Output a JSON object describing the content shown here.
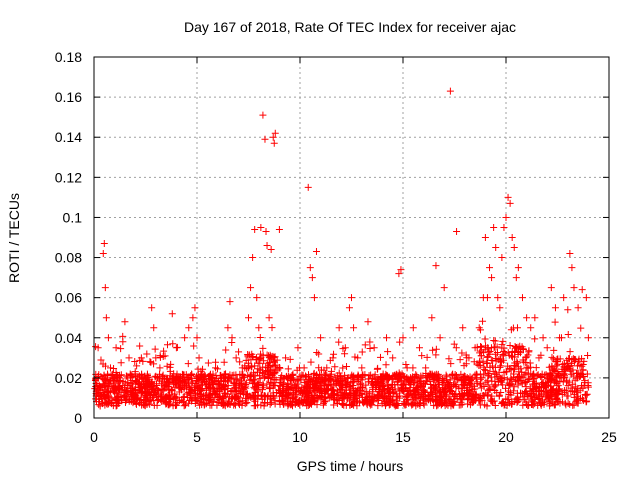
{
  "chart_data": {
    "type": "scatter",
    "title": "Day 167 of 2018, Rate Of TEC Index for receiver ajac",
    "xlabel": "GPS time / hours",
    "ylabel": "ROTI / TECUs",
    "xlim": [
      0,
      25
    ],
    "ylim": [
      0,
      0.18
    ],
    "xticks": [
      0,
      5,
      10,
      15,
      20,
      25
    ],
    "xtick_labels": [
      "0",
      "5",
      "10",
      "15",
      "20",
      "25"
    ],
    "yticks": [
      0,
      0.02,
      0.04,
      0.06,
      0.08,
      0.1,
      0.12,
      0.14,
      0.16,
      0.18
    ],
    "ytick_labels": [
      "0",
      "0.02",
      "0.04",
      "0.06",
      "0.08",
      "0.1",
      "0.12",
      "0.14",
      "0.16",
      "0.18"
    ],
    "grid": true,
    "marker": "+",
    "color": "#ff0000",
    "series": [
      {
        "name": "ROTI",
        "x": [
          0.1,
          0.2,
          0.3,
          0.45,
          0.5,
          0.55,
          0.6,
          0.7,
          0.8,
          1.0,
          1.2,
          1.4,
          1.5,
          1.7,
          2.0,
          2.1,
          2.3,
          2.5,
          2.8,
          2.9,
          3.0,
          3.2,
          3.5,
          3.8,
          4.0,
          4.2,
          4.4,
          4.6,
          4.8,
          4.9,
          5.0,
          5.1,
          5.3,
          5.6,
          5.9,
          6.2,
          6.5,
          6.6,
          6.7,
          6.9,
          7.2,
          7.5,
          7.6,
          7.7,
          7.8,
          7.9,
          8.0,
          8.1,
          8.2,
          8.3,
          8.35,
          8.4,
          8.5,
          8.6,
          8.7,
          8.75,
          8.8,
          9.0,
          9.3,
          9.6,
          9.9,
          10.2,
          10.4,
          10.5,
          10.6,
          10.7,
          10.8,
          11.0,
          11.3,
          11.6,
          11.9,
          12.2,
          12.4,
          12.5,
          12.6,
          12.8,
          13.0,
          13.3,
          13.6,
          13.9,
          14.2,
          14.5,
          14.8,
          14.9,
          15.0,
          15.2,
          15.5,
          15.8,
          16.1,
          16.4,
          16.6,
          16.8,
          17.0,
          17.3,
          17.6,
          17.9,
          18.2,
          18.5,
          18.7,
          18.9,
          19.0,
          19.1,
          19.2,
          19.3,
          19.4,
          19.5,
          19.6,
          19.7,
          19.8,
          19.9,
          20.0,
          20.1,
          20.2,
          20.3,
          20.4,
          20.5,
          20.6,
          20.8,
          21.0,
          21.2,
          21.4,
          21.6,
          21.8,
          22.0,
          22.2,
          22.4,
          22.6,
          22.8,
          23.0,
          23.1,
          23.2,
          23.3,
          23.5,
          23.7,
          23.9,
          24.0
        ],
        "y": [
          0.02,
          0.035,
          0.015,
          0.082,
          0.087,
          0.065,
          0.05,
          0.04,
          0.025,
          0.02,
          0.018,
          0.038,
          0.048,
          0.03,
          0.022,
          0.018,
          0.03,
          0.015,
          0.055,
          0.045,
          0.03,
          0.025,
          0.015,
          0.052,
          0.035,
          0.02,
          0.04,
          0.045,
          0.05,
          0.055,
          0.04,
          0.03,
          0.02,
          0.015,
          0.025,
          0.02,
          0.045,
          0.058,
          0.04,
          0.03,
          0.025,
          0.05,
          0.065,
          0.08,
          0.094,
          0.06,
          0.045,
          0.095,
          0.151,
          0.139,
          0.093,
          0.086,
          0.05,
          0.084,
          0.14,
          0.137,
          0.142,
          0.094,
          0.03,
          0.02,
          0.035,
          0.025,
          0.115,
          0.075,
          0.07,
          0.06,
          0.083,
          0.04,
          0.025,
          0.03,
          0.045,
          0.035,
          0.055,
          0.06,
          0.045,
          0.03,
          0.025,
          0.048,
          0.035,
          0.02,
          0.04,
          0.03,
          0.072,
          0.074,
          0.04,
          0.025,
          0.045,
          0.035,
          0.025,
          0.05,
          0.076,
          0.04,
          0.065,
          0.163,
          0.093,
          0.045,
          0.03,
          0.035,
          0.045,
          0.06,
          0.09,
          0.06,
          0.075,
          0.07,
          0.095,
          0.085,
          0.06,
          0.055,
          0.08,
          0.095,
          0.1,
          0.11,
          0.107,
          0.09,
          0.085,
          0.07,
          0.075,
          0.06,
          0.05,
          0.045,
          0.05,
          0.03,
          0.04,
          0.035,
          0.065,
          0.055,
          0.04,
          0.06,
          0.054,
          0.082,
          0.075,
          0.065,
          0.055,
          0.064,
          0.06,
          0.04
        ]
      }
    ]
  }
}
